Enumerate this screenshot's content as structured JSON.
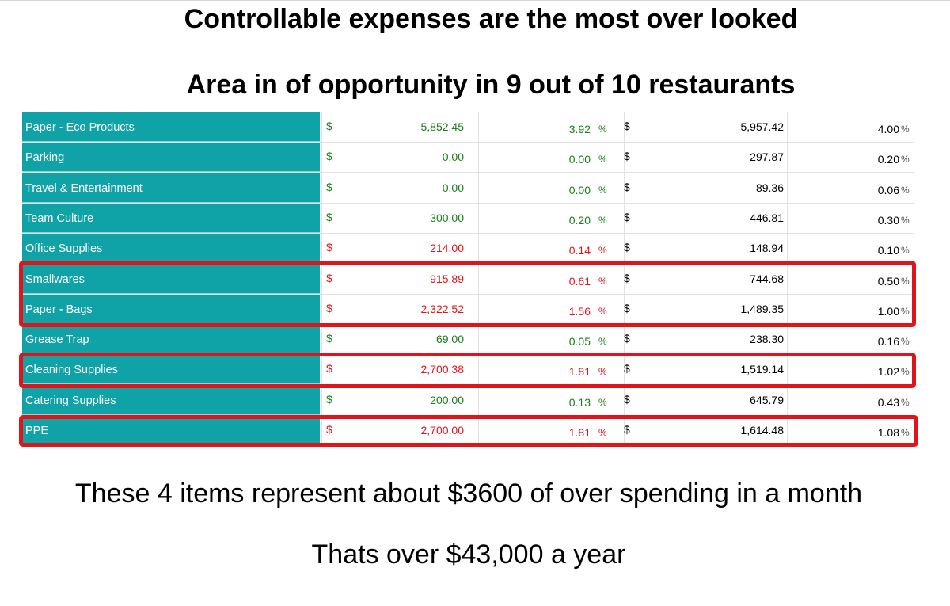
{
  "heading_line1": "Controllable expenses are the most over looked",
  "heading_line2": "Area in of opportunity in 9 out of 10 restaurants",
  "currency_symbol": "$",
  "percent_symbol": "%",
  "colors": {
    "name_cell_bg": "#0fa3a8",
    "under_budget": "#1a7d1a",
    "over_budget": "#e0141b",
    "highlight_border": "#e0141b"
  },
  "rows": [
    {
      "name": "Paper - Eco Products",
      "actual": "5,852.45",
      "actual_pct": "3.92",
      "budget": "5,957.42",
      "budget_pct": "4.00",
      "status": "ok"
    },
    {
      "name": "Parking",
      "actual": "0.00",
      "actual_pct": "0.00",
      "budget": "297.87",
      "budget_pct": "0.20",
      "status": "ok"
    },
    {
      "name": "Travel & Entertainment",
      "actual": "0.00",
      "actual_pct": "0.00",
      "budget": "89.36",
      "budget_pct": "0.06",
      "status": "ok"
    },
    {
      "name": "Team Culture",
      "actual": "300.00",
      "actual_pct": "0.20",
      "budget": "446.81",
      "budget_pct": "0.30",
      "status": "ok"
    },
    {
      "name": "Office Supplies",
      "actual": "214.00",
      "actual_pct": "0.14",
      "budget": "148.94",
      "budget_pct": "0.10",
      "status": "bad"
    },
    {
      "name": "Smallwares",
      "actual": "915.89",
      "actual_pct": "0.61",
      "budget": "744.68",
      "budget_pct": "0.50",
      "status": "bad"
    },
    {
      "name": "Paper - Bags",
      "actual": "2,322.52",
      "actual_pct": "1.56",
      "budget": "1,489.35",
      "budget_pct": "1.00",
      "status": "bad"
    },
    {
      "name": "Grease Trap",
      "actual": "69.00",
      "actual_pct": "0.05",
      "budget": "238.30",
      "budget_pct": "0.16",
      "status": "ok"
    },
    {
      "name": "Cleaning Supplies",
      "actual": "2,700.38",
      "actual_pct": "1.81",
      "budget": "1,519.14",
      "budget_pct": "1.02",
      "status": "bad"
    },
    {
      "name": "Catering Supplies",
      "actual": "200.00",
      "actual_pct": "0.13",
      "budget": "645.79",
      "budget_pct": "0.43",
      "status": "ok"
    },
    {
      "name": "PPE",
      "actual": "2,700.00",
      "actual_pct": "1.81",
      "budget": "1,614.48",
      "budget_pct": "1.08",
      "status": "bad"
    }
  ],
  "highlighted_rows": [
    "Smallwares",
    "Paper - Bags",
    "Cleaning Supplies",
    "PPE"
  ],
  "footer_line1": "These 4 items represent about $3600 of over spending in a month",
  "footer_line2": "Thats over $43,000 a year"
}
